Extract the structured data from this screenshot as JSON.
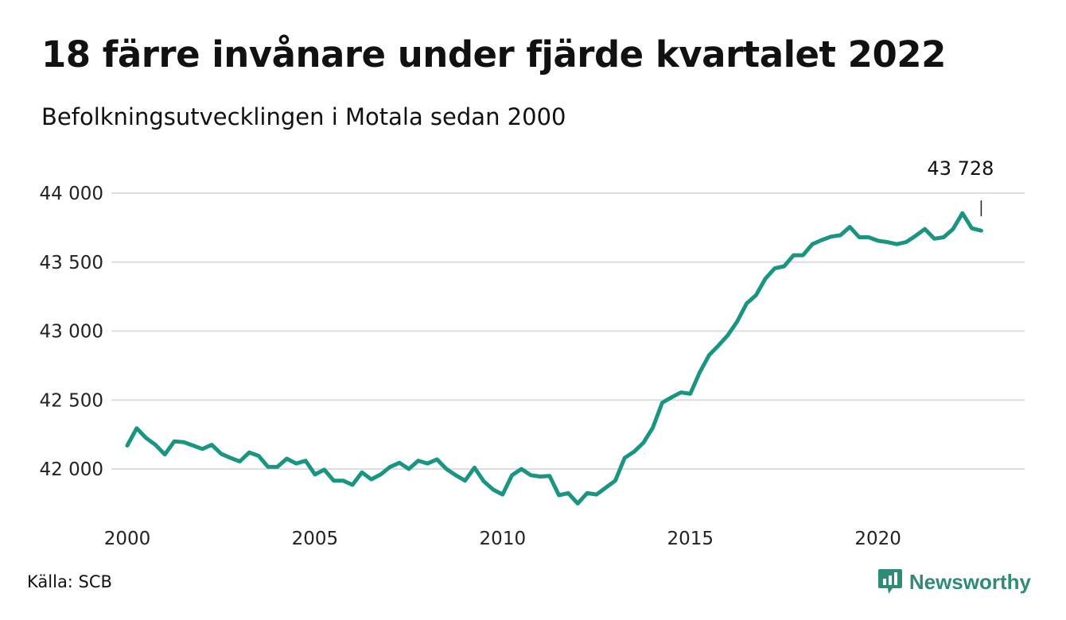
{
  "header": {
    "title": "18 färre invånare under fjärde kvartalet 2022",
    "subtitle": "Befolkningsutvecklingen i Motala sedan 2000"
  },
  "footer": {
    "source": "Källa: SCB",
    "brand": "Newsworthy"
  },
  "colors": {
    "line": "#1a9582",
    "grid": "#dddddd",
    "brand": "#2e8b76"
  },
  "icons": {
    "brand": "newsworthy-logo-icon"
  },
  "chart_data": {
    "type": "line",
    "title": "18 färre invånare under fjärde kvartalet 2022",
    "subtitle": "Befolkningsutvecklingen i Motala sedan 2000",
    "xlabel": "",
    "ylabel": "",
    "xlim": [
      2000,
      2023.25
    ],
    "ylim": [
      41700,
      44050
    ],
    "xticks": [
      2000,
      2005,
      2010,
      2015,
      2020
    ],
    "xtick_labels": [
      "2000",
      "2005",
      "2010",
      "2015",
      "2020"
    ],
    "yticks": [
      42000,
      42500,
      43000,
      43500,
      44000
    ],
    "ytick_labels": [
      "42 000",
      "42 500",
      "43 000",
      "43 500",
      "44 000"
    ],
    "grid": true,
    "end_label": "43 728",
    "series": [
      {
        "x": [
          2000.0,
          2000.25,
          2000.5,
          2000.75,
          2001.0,
          2001.25,
          2001.5,
          2001.75,
          2002.0,
          2002.25,
          2002.5,
          2002.75,
          2003.0,
          2003.25,
          2003.5,
          2003.75,
          2004.0,
          2004.25,
          2004.5,
          2004.75,
          2005.0,
          2005.25,
          2005.5,
          2005.75,
          2006.0,
          2006.25,
          2006.5,
          2006.75,
          2007.0,
          2007.25,
          2007.5,
          2007.75,
          2008.0,
          2008.25,
          2008.5,
          2008.75,
          2009.0,
          2009.25,
          2009.5,
          2009.75,
          2010.0,
          2010.25,
          2010.5,
          2010.75,
          2011.0,
          2011.25,
          2011.5,
          2011.75,
          2012.0,
          2012.25,
          2012.5,
          2012.75,
          2013.0,
          2013.25,
          2013.5,
          2013.75,
          2014.0,
          2014.25,
          2014.5,
          2014.75,
          2015.0,
          2015.25,
          2015.5,
          2015.75,
          2016.0,
          2016.25,
          2016.5,
          2016.75,
          2017.0,
          2017.25,
          2017.5,
          2017.75,
          2018.0,
          2018.25,
          2018.5,
          2018.75,
          2019.0,
          2019.25,
          2019.5,
          2019.75,
          2020.0,
          2020.25,
          2020.5,
          2020.75,
          2021.0,
          2021.25,
          2021.5,
          2021.75,
          2022.0,
          2022.25,
          2022.5,
          2022.75
        ],
        "y": [
          42170,
          42295,
          42225,
          42175,
          42105,
          42200,
          42195,
          42170,
          42145,
          42175,
          42110,
          42080,
          42055,
          42120,
          42095,
          42015,
          42015,
          42075,
          42040,
          42060,
          41960,
          41995,
          41915,
          41915,
          41885,
          41975,
          41925,
          41960,
          42015,
          42045,
          42000,
          42060,
          42040,
          42070,
          42000,
          41955,
          41915,
          42010,
          41910,
          41850,
          41815,
          41955,
          42000,
          41955,
          41945,
          41950,
          41810,
          41825,
          41750,
          41825,
          41815,
          41865,
          41915,
          42080,
          42125,
          42190,
          42300,
          42480,
          42520,
          42555,
          42545,
          42700,
          42825,
          42895,
          42970,
          43070,
          43200,
          43260,
          43380,
          43455,
          43470,
          43550,
          43550,
          43630,
          43660,
          43685,
          43695,
          43755,
          43680,
          43680,
          43655,
          43645,
          43630,
          43645,
          43690,
          43740,
          43670,
          43680,
          43740,
          43855,
          43745,
          43728
        ]
      }
    ]
  }
}
